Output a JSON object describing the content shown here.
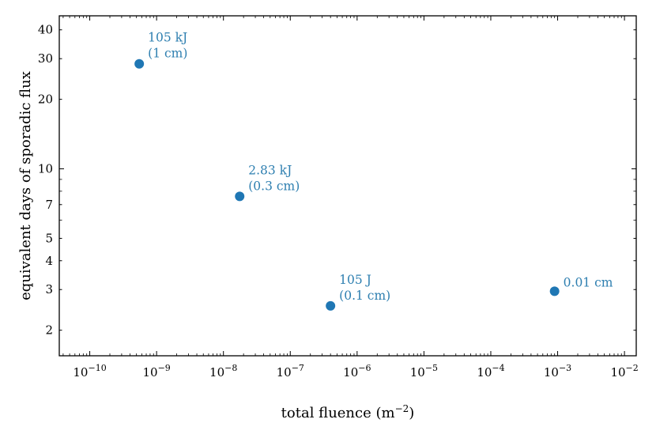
{
  "chart_data": {
    "type": "scatter",
    "title": "",
    "xlabel": {
      "text": "total fluence (m",
      "sup": "−2",
      "close": ")"
    },
    "ylabel": "equivalent days of sporadic flux",
    "xscale": "log",
    "yscale": "log",
    "xlim": [
      3.5e-11,
      0.015
    ],
    "ylim": [
      1.55,
      46
    ],
    "x_ticks": [
      {
        "base": "10",
        "exp": "−10",
        "value": 1e-10
      },
      {
        "base": "10",
        "exp": "−9",
        "value": 1e-09
      },
      {
        "base": "10",
        "exp": "−8",
        "value": 1e-08
      },
      {
        "base": "10",
        "exp": "−7",
        "value": 1e-07
      },
      {
        "base": "10",
        "exp": "−6",
        "value": 1e-06
      },
      {
        "base": "10",
        "exp": "−5",
        "value": 1e-05
      },
      {
        "base": "10",
        "exp": "−4",
        "value": 0.0001
      },
      {
        "base": "10",
        "exp": "−3",
        "value": 0.001
      },
      {
        "base": "10",
        "exp": "−2",
        "value": 0.01
      }
    ],
    "y_ticks": [
      {
        "label": "2",
        "value": 2
      },
      {
        "label": "3",
        "value": 3
      },
      {
        "label": "4",
        "value": 4
      },
      {
        "label": "5",
        "value": 5
      },
      {
        "label": "7",
        "value": 7
      },
      {
        "label": "10",
        "value": 10
      },
      {
        "label": "20",
        "value": 20
      },
      {
        "label": "30",
        "value": 30
      },
      {
        "label": "40",
        "value": 40
      }
    ],
    "points": [
      {
        "x": 5.5e-10,
        "y": 28.5,
        "labels": [
          "105 kJ",
          "(1 cm)"
        ]
      },
      {
        "x": 1.75e-08,
        "y": 7.6,
        "labels": [
          "2.83 kJ",
          "(0.3 cm)"
        ]
      },
      {
        "x": 4e-07,
        "y": 2.55,
        "labels": [
          "105 J",
          "(0.1 cm)"
        ]
      },
      {
        "x": 0.0009,
        "y": 2.95,
        "labels": [
          "0.01 cm"
        ]
      }
    ],
    "marker_color": "#1f77b4",
    "annotation_color": "#2e7fb0",
    "grid": false,
    "legend": "none"
  }
}
